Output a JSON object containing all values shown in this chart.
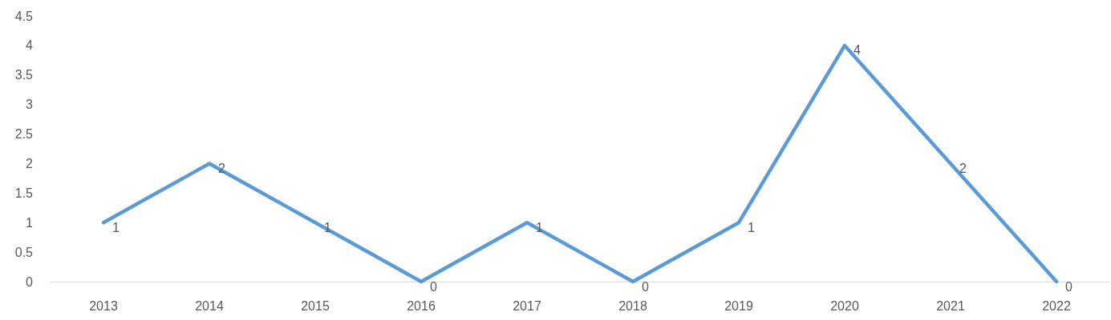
{
  "chart_data": {
    "type": "line",
    "categories": [
      "2013",
      "2014",
      "2015",
      "2016",
      "2017",
      "2018",
      "2019",
      "2020",
      "2021",
      "2022"
    ],
    "series": [
      {
        "color": "#5b9bd5",
        "values": [
          1,
          2,
          1,
          0,
          1,
          0,
          1,
          4,
          2,
          0
        ]
      }
    ],
    "ylim": [
      0,
      4.5
    ],
    "yticks": [
      0,
      0.5,
      1,
      1.5,
      2,
      2.5,
      3,
      3.5,
      4,
      4.5
    ],
    "grid": false,
    "marker": "none",
    "line_style": "solid",
    "data_labels": true
  }
}
